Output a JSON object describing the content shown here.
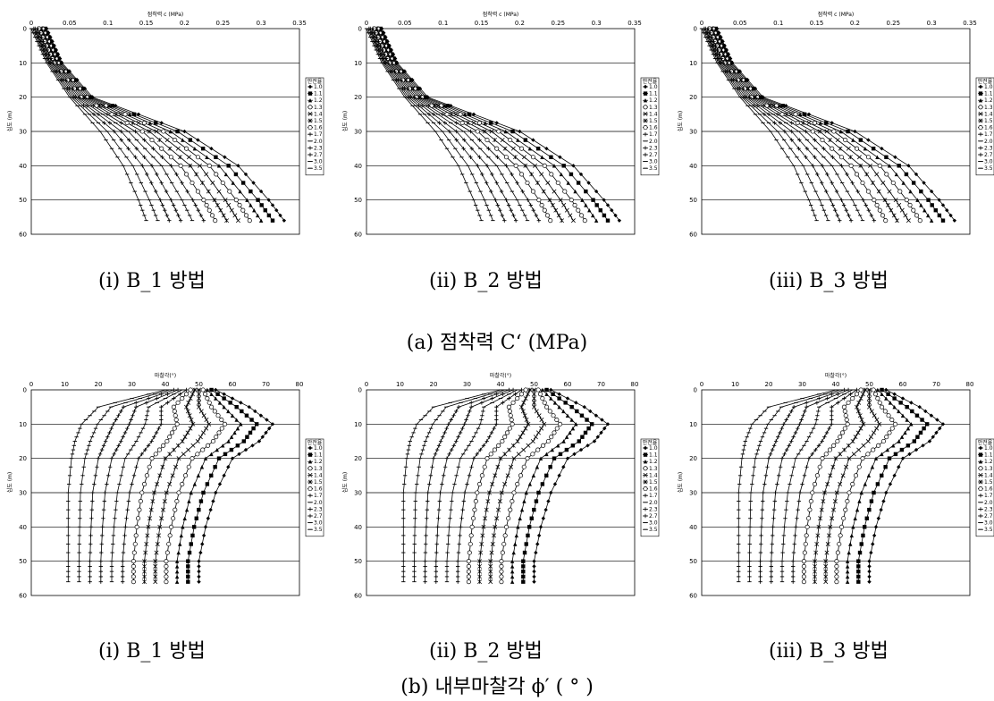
{
  "rows": [
    {
      "caption": "(a) 점착력 C‘ (MPa)",
      "panels": [
        {
          "caption": "(i) B_1 방법",
          "chart_data": {
            "type": "line",
            "title": "점착력 c (MPa)",
            "ylabel": "심도 (m)",
            "xlim": [
              0,
              0.35
            ],
            "ylim": [
              0,
              60
            ],
            "xticks": [
              "0",
              "0.05",
              "0.1",
              "0.15",
              "0.2",
              "0.25",
              "0.3",
              "0.35"
            ],
            "yticks": [
              "0",
              "10",
              "20",
              "30",
              "40",
              "50",
              "60"
            ],
            "legend": {
              "title": "안전율",
              "position": "right",
              "entries": [
                "1.0",
                "1.1",
                "1.2",
                "1.3",
                "1.4",
                "1.5",
                "1.6",
                "1.7",
                "2.0",
                "2.3",
                "2.7",
                "3.0",
                "3.5"
              ]
            },
            "series": [
              {
                "name": "1.0",
                "points": [
                  [
                    0.02,
                    0
                  ],
                  [
                    0.03,
                    5
                  ],
                  [
                    0.04,
                    10
                  ],
                  [
                    0.08,
                    20
                  ],
                  [
                    0.2,
                    30
                  ],
                  [
                    0.27,
                    40
                  ],
                  [
                    0.31,
                    50
                  ],
                  [
                    0.33,
                    56
                  ]
                ]
              },
              {
                "name": "3.5",
                "points": [
                  [
                    0.0,
                    0
                  ],
                  [
                    0.01,
                    5
                  ],
                  [
                    0.02,
                    10
                  ],
                  [
                    0.05,
                    20
                  ],
                  [
                    0.09,
                    30
                  ],
                  [
                    0.12,
                    40
                  ],
                  [
                    0.14,
                    50
                  ],
                  [
                    0.15,
                    56
                  ]
                ]
              }
            ]
          }
        },
        {
          "caption": "(ii) B_2 방법",
          "chart_data": {
            "type": "line",
            "title": "점착력 c (MPa)",
            "ylabel": "심도 (m)",
            "xlim": [
              0,
              0.35
            ],
            "ylim": [
              0,
              60
            ],
            "xticks": [
              "0",
              "0.05",
              "0.1",
              "0.15",
              "0.2",
              "0.25",
              "0.3",
              "0.35"
            ],
            "yticks": [
              "0",
              "10",
              "20",
              "30",
              "40",
              "50",
              "60"
            ],
            "legend": {
              "title": "안전율",
              "position": "right",
              "entries": [
                "1.0",
                "1.1",
                "1.2",
                "1.3",
                "1.4",
                "1.5",
                "1.6",
                "1.7",
                "2.0",
                "2.3",
                "2.7",
                "3.0",
                "3.5"
              ]
            },
            "series": [
              {
                "name": "1.0",
                "points": [
                  [
                    0.02,
                    0
                  ],
                  [
                    0.03,
                    5
                  ],
                  [
                    0.04,
                    10
                  ],
                  [
                    0.08,
                    20
                  ],
                  [
                    0.2,
                    30
                  ],
                  [
                    0.27,
                    40
                  ],
                  [
                    0.31,
                    50
                  ],
                  [
                    0.33,
                    56
                  ]
                ]
              },
              {
                "name": "3.5",
                "points": [
                  [
                    0.0,
                    0
                  ],
                  [
                    0.01,
                    5
                  ],
                  [
                    0.02,
                    10
                  ],
                  [
                    0.05,
                    20
                  ],
                  [
                    0.09,
                    30
                  ],
                  [
                    0.12,
                    40
                  ],
                  [
                    0.14,
                    50
                  ],
                  [
                    0.15,
                    56
                  ]
                ]
              }
            ]
          }
        },
        {
          "caption": "(iii) B_3 방법",
          "chart_data": {
            "type": "line",
            "title": "점착력 c (MPa)",
            "ylabel": "심도 (m)",
            "xlim": [
              0,
              0.35
            ],
            "ylim": [
              0,
              60
            ],
            "xticks": [
              "0",
              "0.05",
              "0.1",
              "0.15",
              "0.2",
              "0.25",
              "0.3",
              "0.35"
            ],
            "yticks": [
              "0",
              "10",
              "20",
              "30",
              "40",
              "50",
              "60"
            ],
            "legend": {
              "title": "안전율",
              "position": "right",
              "entries": [
                "1.0",
                "1.1",
                "1.2",
                "1.3",
                "1.4",
                "1.5",
                "1.6",
                "1.7",
                "2.0",
                "2.3",
                "2.7",
                "3.0",
                "3.5"
              ]
            },
            "series": [
              {
                "name": "1.0",
                "points": [
                  [
                    0.02,
                    0
                  ],
                  [
                    0.03,
                    5
                  ],
                  [
                    0.04,
                    10
                  ],
                  [
                    0.08,
                    20
                  ],
                  [
                    0.2,
                    30
                  ],
                  [
                    0.27,
                    40
                  ],
                  [
                    0.31,
                    50
                  ],
                  [
                    0.33,
                    56
                  ]
                ]
              },
              {
                "name": "3.5",
                "points": [
                  [
                    0.0,
                    0
                  ],
                  [
                    0.01,
                    5
                  ],
                  [
                    0.02,
                    10
                  ],
                  [
                    0.05,
                    20
                  ],
                  [
                    0.09,
                    30
                  ],
                  [
                    0.12,
                    40
                  ],
                  [
                    0.14,
                    50
                  ],
                  [
                    0.15,
                    56
                  ]
                ]
              }
            ]
          }
        }
      ]
    },
    {
      "caption": "(b) 내부마찰각  ϕ′ ( ° )",
      "panels": [
        {
          "caption": "(i) B_1 방법",
          "chart_data": {
            "type": "line",
            "title": "마찰각(°)",
            "ylabel": "심도 (m)",
            "xlim": [
              0,
              80
            ],
            "ylim": [
              0,
              60
            ],
            "xticks": [
              "0",
              "10",
              "20",
              "30",
              "40",
              "50",
              "60",
              "70",
              "80"
            ],
            "yticks": [
              "0",
              "10",
              "20",
              "30",
              "40",
              "50",
              "60"
            ],
            "legend": {
              "title": "안전율",
              "position": "right",
              "entries": [
                "1.0",
                "1.1",
                "1.2",
                "1.3",
                "1.4",
                "1.5",
                "1.6",
                "1.7",
                "2.0",
                "2.3",
                "2.7",
                "3.0",
                "3.5"
              ]
            },
            "series": [
              {
                "name": "1.0",
                "points": [
                  [
                    55,
                    0
                  ],
                  [
                    65,
                    5
                  ],
                  [
                    72,
                    10
                  ],
                  [
                    68,
                    15
                  ],
                  [
                    60,
                    20
                  ],
                  [
                    55,
                    30
                  ],
                  [
                    52,
                    40
                  ],
                  [
                    50,
                    50
                  ],
                  [
                    50,
                    56
                  ]
                ]
              },
              {
                "name": "3.5",
                "points": [
                  [
                    40,
                    0
                  ],
                  [
                    20,
                    2
                  ],
                  [
                    15,
                    10
                  ],
                  [
                    13,
                    20
                  ],
                  [
                    12,
                    30
                  ],
                  [
                    11,
                    40
                  ],
                  [
                    11,
                    50
                  ],
                  [
                    11,
                    56
                  ]
                ]
              }
            ]
          }
        },
        {
          "caption": "(ii) B_2 방법",
          "chart_data": {
            "type": "line",
            "title": "마찰각(°)",
            "ylabel": "심도 (m)",
            "xlim": [
              0,
              80
            ],
            "ylim": [
              0,
              60
            ],
            "xticks": [
              "0",
              "10",
              "20",
              "30",
              "40",
              "50",
              "60",
              "70",
              "80"
            ],
            "yticks": [
              "0",
              "10",
              "20",
              "30",
              "40",
              "50",
              "60"
            ],
            "legend": {
              "title": "안전율",
              "position": "right",
              "entries": [
                "1.0",
                "1.1",
                "1.2",
                "1.3",
                "1.4",
                "1.5",
                "1.6",
                "1.7",
                "2.0",
                "2.3",
                "2.7",
                "3.0",
                "3.5"
              ]
            },
            "series": [
              {
                "name": "1.0",
                "points": [
                  [
                    55,
                    0
                  ],
                  [
                    65,
                    5
                  ],
                  [
                    72,
                    10
                  ],
                  [
                    68,
                    15
                  ],
                  [
                    60,
                    20
                  ],
                  [
                    55,
                    30
                  ],
                  [
                    52,
                    40
                  ],
                  [
                    50,
                    50
                  ],
                  [
                    50,
                    56
                  ]
                ]
              },
              {
                "name": "3.5",
                "points": [
                  [
                    40,
                    0
                  ],
                  [
                    20,
                    2
                  ],
                  [
                    15,
                    10
                  ],
                  [
                    13,
                    20
                  ],
                  [
                    12,
                    30
                  ],
                  [
                    11,
                    40
                  ],
                  [
                    11,
                    50
                  ],
                  [
                    11,
                    56
                  ]
                ]
              }
            ]
          }
        },
        {
          "caption": "(iii) B_3 방법",
          "chart_data": {
            "type": "line",
            "title": "마찰각(°)",
            "ylabel": "심도 (m)",
            "xlim": [
              0,
              80
            ],
            "ylim": [
              0,
              60
            ],
            "xticks": [
              "0",
              "10",
              "20",
              "30",
              "40",
              "50",
              "60",
              "70",
              "80"
            ],
            "yticks": [
              "0",
              "10",
              "20",
              "30",
              "40",
              "50",
              "60"
            ],
            "legend": {
              "title": "안전율",
              "position": "right",
              "entries": [
                "1.0",
                "1.1",
                "1.2",
                "1.3",
                "1.4",
                "1.5",
                "1.6",
                "1.7",
                "2.0",
                "2.3",
                "2.7",
                "3.0",
                "3.5"
              ]
            },
            "series": [
              {
                "name": "1.0",
                "points": [
                  [
                    55,
                    0
                  ],
                  [
                    65,
                    5
                  ],
                  [
                    72,
                    10
                  ],
                  [
                    68,
                    15
                  ],
                  [
                    60,
                    20
                  ],
                  [
                    55,
                    30
                  ],
                  [
                    52,
                    40
                  ],
                  [
                    50,
                    50
                  ],
                  [
                    50,
                    56
                  ]
                ]
              },
              {
                "name": "3.5",
                "points": [
                  [
                    40,
                    0
                  ],
                  [
                    20,
                    2
                  ],
                  [
                    15,
                    10
                  ],
                  [
                    13,
                    20
                  ],
                  [
                    12,
                    30
                  ],
                  [
                    11,
                    40
                  ],
                  [
                    11,
                    50
                  ],
                  [
                    11,
                    56
                  ]
                ]
              }
            ]
          }
        }
      ]
    }
  ]
}
